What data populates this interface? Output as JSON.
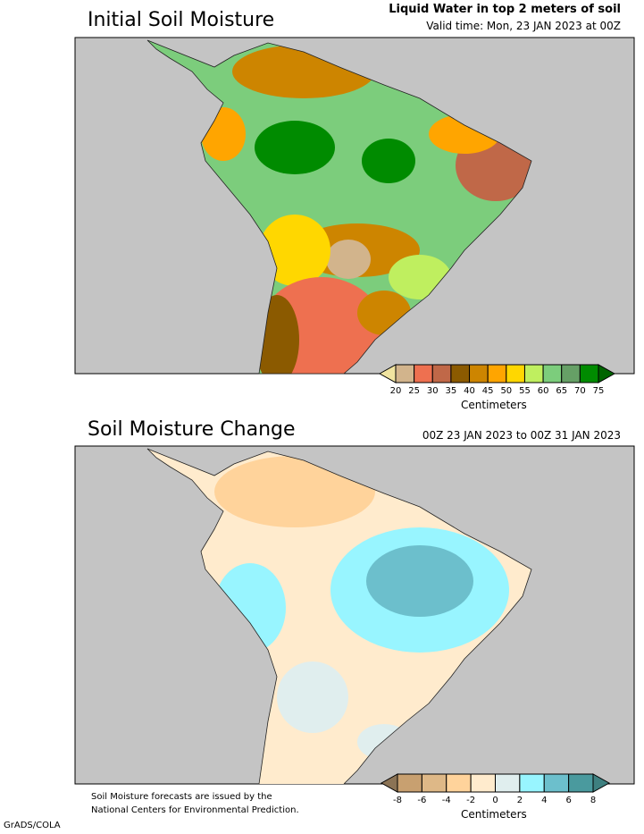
{
  "panel1": {
    "title": "Initial Soil Moisture",
    "header_line1": "Liquid Water in top 2 meters of soil",
    "header_line2": "Valid time: Mon, 23 JAN 2023 at 00Z",
    "colorbar": {
      "ticks": [
        "20",
        "25",
        "30",
        "35",
        "40",
        "45",
        "50",
        "55",
        "60",
        "65",
        "70",
        "75"
      ],
      "unit": "Centimeters",
      "under_color": "#F0E4A0",
      "over_color": "#006400",
      "colors": [
        "#D2B48C",
        "#EE7050",
        "#C06848",
        "#8B5A00",
        "#CD8500",
        "#FFA500",
        "#FFD700",
        "#BFEF5F",
        "#7CCD7C",
        "#66A066",
        "#008B00"
      ]
    }
  },
  "panel2": {
    "title": "Soil Moisture Change",
    "header_line1": "00Z 23 JAN 2023 to 00Z 31 JAN 2023",
    "colorbar": {
      "ticks": [
        "-8",
        "-6",
        "-4",
        "-2",
        "0",
        "2",
        "4",
        "6",
        "8"
      ],
      "unit": "Centimeters",
      "under_color": "#8B7355",
      "over_color": "#3E8080",
      "colors": [
        "#C8A070",
        "#DEB887",
        "#FFD39B",
        "#FFEBCD",
        "#E0EEEE",
        "#98F5FF",
        "#6CBFCC",
        "#4A9A9E"
      ]
    }
  },
  "footer": {
    "note_line1": "Soil Moisture forecasts are issued by the",
    "note_line2": "National Centers for Environmental Prediction.",
    "credit": "GrADS/COLA"
  }
}
